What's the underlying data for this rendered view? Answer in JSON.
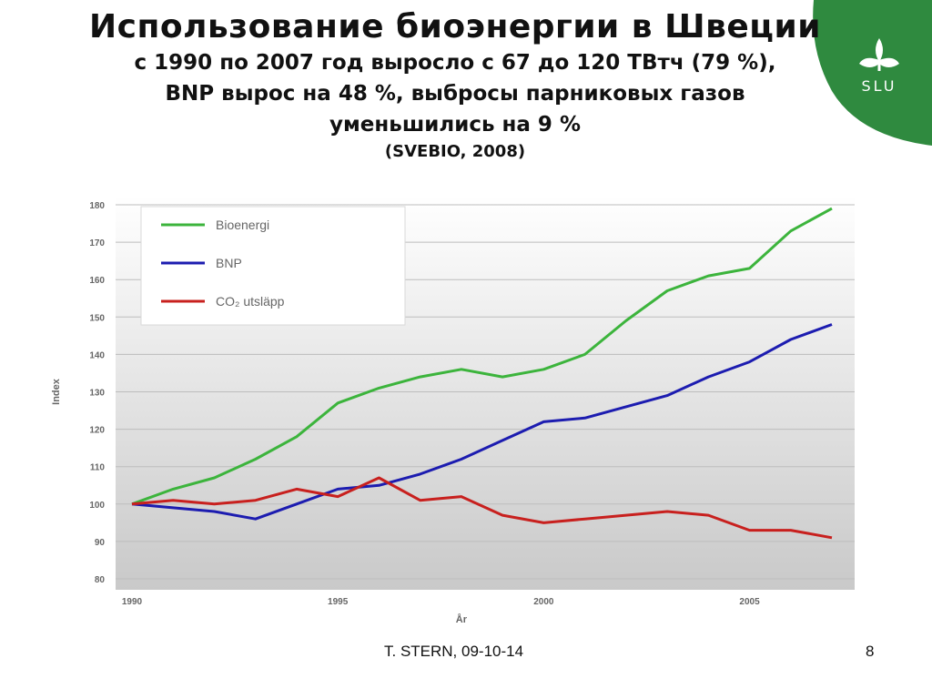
{
  "slide": {
    "title": "Использование биоэнергии в Швеции",
    "subtitle_line1": "с 1990 по 2007 год выросло с 67 до 120 ТВтч (79 %),",
    "subtitle_line2": "BNP вырос на 48 %, выбросы парниковых газов",
    "subtitle_line3": "уменьшились на 9 %",
    "source": "(SVEBIO, 2008)",
    "footer_author": "T. STERN, 09-10-14",
    "page_number": "8",
    "logo_text": "SLU",
    "logo_icon": "slu-leaf-icon",
    "logo_color": "#2f8a3f"
  },
  "chart_data": {
    "type": "line",
    "x": [
      1990,
      1991,
      1992,
      1993,
      1994,
      1995,
      1996,
      1997,
      1998,
      1999,
      2000,
      2001,
      2002,
      2003,
      2004,
      2005,
      2006,
      2007
    ],
    "series": [
      {
        "name": "Bioenergi",
        "color": "#3cb43c",
        "values": [
          100,
          104,
          107,
          112,
          118,
          127,
          131,
          134,
          136,
          134,
          136,
          140,
          149,
          157,
          161,
          163,
          173,
          179
        ]
      },
      {
        "name": "BNP",
        "color": "#1c1cb0",
        "values": [
          100,
          99,
          98,
          96,
          100,
          104,
          105,
          108,
          112,
          117,
          122,
          123,
          126,
          129,
          134,
          138,
          144,
          148
        ]
      },
      {
        "name": "CO₂ utsläpp",
        "color": "#c8201e",
        "values": [
          100,
          101,
          100,
          101,
          104,
          102,
          107,
          101,
          102,
          97,
          95,
          96,
          97,
          98,
          97,
          93,
          93,
          91
        ]
      }
    ],
    "xlabel": "År",
    "ylabel": "Index",
    "ylim": [
      80,
      180
    ],
    "yticks": [
      80,
      90,
      100,
      110,
      120,
      130,
      140,
      150,
      160,
      170,
      180
    ],
    "xticks": [
      1990,
      1995,
      2000,
      2005
    ],
    "grid": "horizontal",
    "legend_position": "top-left"
  }
}
